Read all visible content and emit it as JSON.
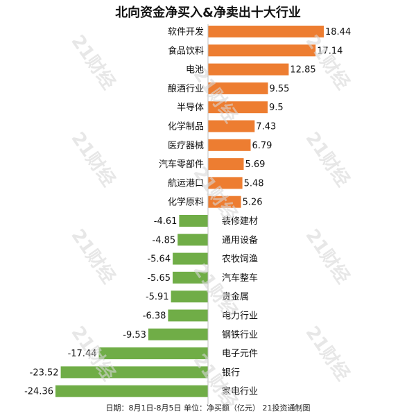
{
  "chart_data": {
    "type": "bar",
    "orientation": "horizontal",
    "title": "北向资金净买入&净卖出十大行业",
    "categories": [
      "软件开发",
      "食品饮料",
      "电池",
      "酿酒行业",
      "半导体",
      "化学制品",
      "医疗器械",
      "汽车零部件",
      "航运港口",
      "化学原料",
      "装修建材",
      "通用设备",
      "农牧饲渔",
      "汽车整车",
      "贵金属",
      "电力行业",
      "钢铁行业",
      "电子元件",
      "银行",
      "家电行业"
    ],
    "values": [
      18.44,
      17.14,
      12.85,
      9.55,
      9.5,
      7.43,
      6.79,
      5.69,
      5.48,
      5.26,
      -4.61,
      -4.85,
      -5.64,
      -5.65,
      -5.91,
      -6.38,
      -9.53,
      -17.44,
      -23.52,
      -24.36
    ],
    "value_labels": [
      "18.44",
      "17.14",
      "12.85",
      "9.55",
      "9.5",
      "7.43",
      "6.79",
      "5.69",
      "5.48",
      "5.26",
      "-4.61",
      "-4.85",
      "-5.64",
      "-5.65",
      "-5.91",
      "-6.38",
      "-9.53",
      "-17.44",
      "-23.52",
      "-24.36"
    ],
    "xlim": [
      -24.36,
      18.44
    ],
    "colors": {
      "positive": "#ED7D31",
      "negative": "#70AD47"
    },
    "footer": "日期：8月1日-8月5日 单位：净买额（亿元） 21投资通制图",
    "watermark": "21财经"
  }
}
